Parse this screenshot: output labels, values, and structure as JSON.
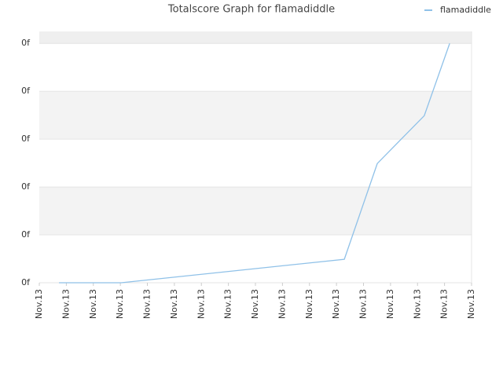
{
  "chart_data": {
    "type": "line",
    "title": "Totalscore Graph for flamadiddle",
    "x": [
      0.73,
      3.03,
      11.29,
      12.51,
      14.25,
      15.19
    ],
    "series": [
      {
        "name": "flamadiddle",
        "color": "#8fc1e8",
        "values": [
          0,
          0,
          0.49,
          2.49,
          3.49,
          5
        ]
      }
    ],
    "xlim": [
      0,
      16
    ],
    "xticks": [
      {
        "value": 0,
        "label": "Nov.13"
      },
      {
        "value": 1,
        "label": "Nov.13"
      },
      {
        "value": 2,
        "label": "Nov.13"
      },
      {
        "value": 3,
        "label": "Nov.13"
      },
      {
        "value": 4,
        "label": "Nov.13"
      },
      {
        "value": 5,
        "label": "Nov.13"
      },
      {
        "value": 6,
        "label": "Nov.13"
      },
      {
        "value": 7,
        "label": "Nov.13"
      },
      {
        "value": 8,
        "label": "Nov.13"
      },
      {
        "value": 9,
        "label": "Nov.13"
      },
      {
        "value": 10,
        "label": "Nov.13"
      },
      {
        "value": 11,
        "label": "Nov.13"
      },
      {
        "value": 12,
        "label": "Nov.13"
      },
      {
        "value": 13,
        "label": "Nov.13"
      },
      {
        "value": 14,
        "label": "Nov.13"
      },
      {
        "value": 15,
        "label": "Nov.13"
      },
      {
        "value": 16,
        "label": "Nov.13"
      }
    ],
    "ylim": [
      0,
      5.25
    ],
    "yticks": [
      {
        "value": 0,
        "label": "0f"
      },
      {
        "value": 1,
        "label": "0f"
      },
      {
        "value": 2,
        "label": "0f"
      },
      {
        "value": 3,
        "label": "0f"
      },
      {
        "value": 4,
        "label": "0f"
      },
      {
        "value": 5,
        "label": "0f"
      }
    ],
    "grid": true,
    "legend": "top-right"
  }
}
